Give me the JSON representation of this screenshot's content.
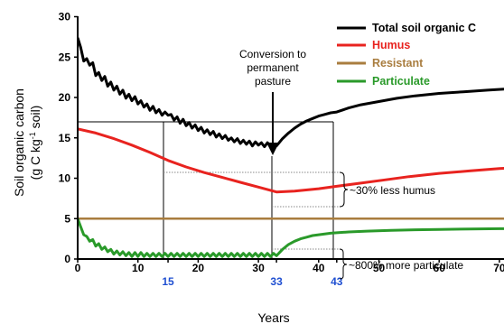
{
  "chart_data": {
    "type": "line",
    "xlabel": "Years",
    "ylabel_lines": [
      "Soil organic carbon",
      "(g C kg",
      "-1",
      " soil)"
    ],
    "xlim": [
      0,
      74
    ],
    "ylim": [
      0,
      30
    ],
    "xticks": [
      0,
      10,
      20,
      30,
      40,
      50,
      60,
      70
    ],
    "yticks": [
      0,
      5,
      10,
      15,
      20,
      25,
      30
    ],
    "highlight_xticks": [
      15,
      33,
      43
    ],
    "colors": {
      "Total soil organic C": "#000000",
      "Humus": "#e8231f",
      "Resistant": "#a97d3f",
      "Particulate": "#2a9a2a",
      "highlight_tick": "#1f4fd1"
    },
    "legend_position": "top-right",
    "series": [
      {
        "name": "Total soil organic C",
        "x": [
          0,
          0.5,
          1,
          1.5,
          2,
          2.5,
          3,
          3.5,
          4,
          4.5,
          5,
          5.5,
          6,
          6.5,
          7,
          7.5,
          8,
          8.5,
          9,
          9.5,
          10,
          10.5,
          11,
          11.5,
          12,
          12.5,
          13,
          13.5,
          14,
          14.5,
          15,
          15.5,
          16,
          16.5,
          17,
          17.5,
          18,
          18.5,
          19,
          19.5,
          20,
          20.5,
          21,
          21.5,
          22,
          22.5,
          23,
          23.5,
          24,
          24.5,
          25,
          25.5,
          26,
          26.5,
          27,
          27.5,
          28,
          28.5,
          29,
          29.5,
          30,
          30.5,
          31,
          31.5,
          32,
          32.5,
          33,
          34,
          35,
          36,
          37,
          38,
          39,
          40,
          41,
          42,
          43,
          45,
          47,
          50,
          53,
          56,
          60,
          64,
          68,
          72,
          74
        ],
        "y": [
          27.4,
          26.2,
          24.5,
          24.8,
          24.0,
          24.3,
          22.7,
          23.1,
          22.1,
          22.6,
          21.4,
          21.9,
          20.9,
          21.4,
          20.4,
          20.9,
          19.9,
          20.4,
          19.6,
          20.1,
          19.2,
          19.6,
          18.8,
          19.2,
          18.4,
          18.9,
          18.1,
          18.5,
          17.8,
          18.2,
          17.8,
          17.9,
          17.2,
          17.6,
          16.8,
          17.3,
          16.5,
          16.9,
          16.2,
          16.6,
          15.9,
          16.3,
          15.6,
          16.0,
          15.4,
          15.8,
          15.1,
          15.5,
          14.9,
          15.3,
          14.7,
          15.0,
          14.5,
          14.9,
          14.3,
          14.7,
          14.2,
          14.6,
          14.0,
          14.5,
          14.1,
          14.4,
          13.9,
          14.4,
          14.0,
          14.2,
          14.0,
          14.9,
          15.6,
          16.2,
          16.7,
          17.1,
          17.4,
          17.7,
          17.9,
          18.1,
          18.2,
          18.7,
          19.1,
          19.5,
          19.9,
          20.2,
          20.5,
          20.7,
          20.9,
          21.1,
          21.2
        ]
      },
      {
        "name": "Humus",
        "x": [
          0,
          3,
          6,
          9,
          12,
          15,
          18,
          21,
          24,
          27,
          30,
          33,
          36,
          40,
          43,
          47,
          51,
          55,
          60,
          65,
          70,
          74
        ],
        "y": [
          16.1,
          15.6,
          14.9,
          14.1,
          13.2,
          12.2,
          11.4,
          10.7,
          10.1,
          9.5,
          8.9,
          8.3,
          8.4,
          8.7,
          9.0,
          9.4,
          9.8,
          10.2,
          10.6,
          10.9,
          11.2,
          11.4
        ]
      },
      {
        "name": "Resistant",
        "x": [
          0,
          74
        ],
        "y": [
          5.0,
          5.0
        ]
      },
      {
        "name": "Particulate",
        "x": [
          0,
          0.5,
          1,
          1.5,
          2,
          2.5,
          3,
          3.5,
          4,
          4.5,
          5,
          5.5,
          6,
          6.5,
          7,
          7.5,
          8,
          8.5,
          9,
          9.5,
          10,
          10.5,
          11,
          11.5,
          12,
          12.5,
          13,
          13.5,
          14,
          14.5,
          15,
          15.5,
          16,
          16.5,
          17,
          17.5,
          18,
          18.5,
          19,
          19.5,
          20,
          20.5,
          21,
          21.5,
          22,
          22.5,
          23,
          23.5,
          24,
          24.5,
          25,
          25.5,
          26,
          26.5,
          27,
          27.5,
          28,
          28.5,
          29,
          29.5,
          30,
          30.5,
          31,
          31.5,
          32,
          32.5,
          33,
          34,
          35,
          36,
          37,
          38,
          39,
          40,
          41,
          42,
          43,
          45,
          48,
          52,
          56,
          60,
          65,
          70,
          74
        ],
        "y": [
          5.0,
          4.0,
          3.0,
          2.8,
          2.2,
          2.4,
          1.6,
          1.9,
          1.2,
          1.5,
          0.9,
          1.2,
          0.6,
          1.0,
          0.5,
          0.9,
          0.4,
          0.8,
          0.3,
          0.8,
          0.3,
          0.8,
          0.3,
          0.7,
          0.3,
          0.7,
          0.3,
          0.7,
          0.3,
          0.7,
          0.3,
          0.7,
          0.3,
          0.7,
          0.3,
          0.7,
          0.3,
          0.7,
          0.3,
          0.7,
          0.3,
          0.7,
          0.3,
          0.7,
          0.3,
          0.7,
          0.3,
          0.7,
          0.3,
          0.7,
          0.3,
          0.7,
          0.3,
          0.7,
          0.3,
          0.7,
          0.3,
          0.7,
          0.3,
          0.7,
          0.3,
          0.7,
          0.3,
          0.7,
          0.3,
          0.7,
          0.4,
          1.2,
          1.8,
          2.2,
          2.5,
          2.7,
          2.9,
          3.0,
          3.1,
          3.2,
          3.25,
          3.35,
          3.45,
          3.55,
          3.62,
          3.67,
          3.72,
          3.75,
          3.77
        ]
      }
    ],
    "annotations": {
      "conversion_lines": [
        "Conversion to",
        "permanent",
        "pasture"
      ],
      "humus_note": "~30% less humus",
      "particulate_note": "~800% more particulate"
    }
  }
}
